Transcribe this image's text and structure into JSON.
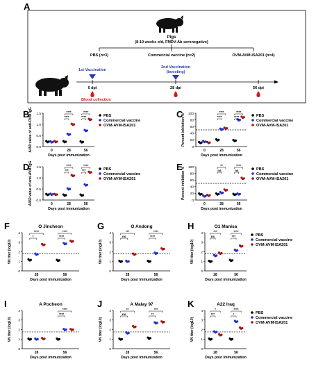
{
  "panel_labels": [
    "A",
    "B",
    "C",
    "D",
    "E",
    "F",
    "G",
    "H",
    "I",
    "J",
    "K"
  ],
  "schematic": {
    "animal_title": "Pigs",
    "animal_subtitle": "(8-10 weeks old, FMDV-Ab seronegative)",
    "groups": [
      "PBS (n=3)",
      "Commercial vaccine (n=2)",
      "OVM-AVM-ISA201 (n=4)"
    ],
    "vaccination_1": "1st Vaccination",
    "vaccination_2": "2nd Vaccination",
    "vaccination_2_note": "(boosting)",
    "timepoints": [
      "0 dpi",
      "28 dpi",
      "56 dpi"
    ],
    "blood_collection": "Blood collection",
    "colors": {
      "vaccination": "#2b3aa6",
      "blood": "#d11a1a"
    }
  },
  "legend": [
    "PBS",
    "Commercial vaccine",
    "OVM-AVM-ISA201"
  ],
  "colors": {
    "PBS": "#000000",
    "Commercial vaccine": "#1f2fd0",
    "OVM-AVM-ISA201": "#a31515"
  },
  "chart_data": [
    {
      "id": "B",
      "type": "scatter",
      "xlabel": "Days post immunization",
      "ylabel": "A450 value of anti-OVM IgG",
      "categories": [
        "0",
        "28",
        "56"
      ],
      "yticks": [
        "0.0",
        "0.5",
        "1.0",
        "1.5"
      ],
      "ylim": [
        0,
        1.5
      ],
      "legend": "right",
      "series": [
        {
          "name": "PBS",
          "values": [
            0.22,
            0.22,
            0.21
          ]
        },
        {
          "name": "Commercial vaccine",
          "values": [
            0.21,
            0.55,
            0.72
          ]
        },
        {
          "name": "OVM-AVM-ISA201",
          "values": [
            0.22,
            1.0,
            1.22
          ]
        }
      ],
      "sig": [
        {
          "x": 1,
          "level": 1,
          "text": "****"
        },
        {
          "x": 1,
          "level": 0,
          "text": "****"
        },
        {
          "x": 2,
          "level": 1,
          "text": "****"
        },
        {
          "x": 2,
          "level": 0,
          "text": "****"
        }
      ]
    },
    {
      "id": "C",
      "type": "scatter",
      "xlabel": "Days post immunization",
      "ylabel": "Percent inhibition %",
      "categories": [
        "0",
        "28",
        "56"
      ],
      "yticks": [
        "0",
        "20",
        "40",
        "60",
        "80",
        "100"
      ],
      "ylim": [
        0,
        100
      ],
      "cutoff": 50,
      "legend": "right",
      "series": [
        {
          "name": "PBS",
          "values": [
            12,
            20,
            18
          ]
        },
        {
          "name": "Commercial vaccine",
          "values": [
            15,
            52,
            80
          ]
        },
        {
          "name": "OVM-AVM-ISA201",
          "values": [
            12,
            55,
            88
          ]
        }
      ],
      "sig": [
        {
          "x": 1,
          "level": 1,
          "text": "****"
        },
        {
          "x": 1,
          "level": 0,
          "text": "****"
        },
        {
          "x": 2,
          "level": 1,
          "text": "****"
        },
        {
          "x": 2,
          "level": 0,
          "text": "****"
        }
      ]
    },
    {
      "id": "D",
      "type": "scatter",
      "xlabel": "Days post immunization",
      "ylabel": "A450 value of anti-AVM IgG",
      "categories": [
        "0",
        "28",
        "56"
      ],
      "yticks": [
        "0.0",
        "0.5",
        "1.0",
        "1.5"
      ],
      "ylim": [
        0,
        1.5
      ],
      "legend": "right",
      "series": [
        {
          "name": "PBS",
          "values": [
            0.25,
            0.22,
            0.22
          ]
        },
        {
          "name": "Commercial vaccine",
          "values": [
            0.26,
            0.5,
            0.68
          ]
        },
        {
          "name": "OVM-AVM-ISA201",
          "values": [
            0.25,
            1.1,
            1.25
          ]
        }
      ],
      "sig": [
        {
          "x": 1,
          "level": 1,
          "text": "****"
        },
        {
          "x": 1,
          "level": 0,
          "text": "***"
        },
        {
          "x": 2,
          "level": 1,
          "text": "****"
        },
        {
          "x": 2,
          "level": 0,
          "text": "***"
        }
      ]
    },
    {
      "id": "E",
      "type": "scatter",
      "xlabel": "Days post immunization",
      "ylabel": "Percent inhibition %",
      "categories": [
        "0",
        "28",
        "56"
      ],
      "yticks": [
        "0",
        "20",
        "40",
        "60",
        "80",
        "100"
      ],
      "ylim": [
        0,
        100
      ],
      "cutoff": 50,
      "legend": "right",
      "series": [
        {
          "name": "PBS",
          "values": [
            18,
            18,
            17
          ]
        },
        {
          "name": "Commercial vaccine",
          "values": [
            12,
            22,
            18
          ]
        },
        {
          "name": "OVM-AVM-ISA201",
          "values": [
            14,
            30,
            65
          ]
        }
      ],
      "sig": [
        {
          "x": 1,
          "level": 1,
          "text": "**"
        },
        {
          "x": 1,
          "level": 0,
          "text": "ns"
        },
        {
          "x": 2,
          "level": 1,
          "text": "****"
        },
        {
          "x": 2,
          "level": 0,
          "text": "ns"
        }
      ]
    },
    {
      "id": "F",
      "type": "scatter",
      "title": "O Jincheon",
      "xlabel": "Days post immunization",
      "ylabel": "VN titer (log10)",
      "categories": [
        "28",
        "56"
      ],
      "yticks": [
        "0",
        "1",
        "2",
        "3",
        "4"
      ],
      "ylim": [
        0,
        4
      ],
      "cutoff": 1.8,
      "series": [
        {
          "name": "PBS",
          "values": [
            1.15,
            1.1
          ]
        },
        {
          "name": "Commercial vaccine",
          "values": [
            1.75,
            2.85
          ]
        },
        {
          "name": "OVM-AVM-ISA201",
          "values": [
            2.75,
            3.1
          ]
        }
      ],
      "sig": [
        {
          "x": 0,
          "level": 1,
          "text": "****"
        },
        {
          "x": 0,
          "level": 0,
          "text": "*"
        },
        {
          "x": 1,
          "level": 1,
          "text": "****"
        },
        {
          "x": 1,
          "level": 0,
          "text": "****"
        }
      ]
    },
    {
      "id": "G",
      "type": "scatter",
      "title": "O Andong",
      "xlabel": "Days post immunization",
      "ylabel": "VN titer (log10)",
      "categories": [
        "28",
        "56"
      ],
      "yticks": [
        "0",
        "1",
        "2",
        "3",
        "4"
      ],
      "ylim": [
        0,
        4
      ],
      "cutoff": 1.8,
      "series": [
        {
          "name": "PBS",
          "values": [
            1.0,
            1.0
          ]
        },
        {
          "name": "Commercial vaccine",
          "values": [
            1.0,
            1.85
          ]
        },
        {
          "name": "OVM-AVM-ISA201",
          "values": [
            1.75,
            2.3
          ]
        }
      ],
      "sig": [
        {
          "x": 0,
          "level": 1,
          "text": "***"
        },
        {
          "x": 0,
          "level": 0,
          "text": "ns"
        },
        {
          "x": 1,
          "level": 1,
          "text": "****"
        },
        {
          "x": 1,
          "level": 0,
          "text": "****"
        }
      ]
    },
    {
      "id": "H",
      "type": "scatter",
      "title": "O1 Manisa",
      "xlabel": "Days post immunization",
      "ylabel": "VN titer (log10)",
      "categories": [
        "28",
        "56"
      ],
      "yticks": [
        "0",
        "1",
        "2",
        "3",
        "4"
      ],
      "ylim": [
        0,
        4
      ],
      "cutoff": 1.8,
      "legend": "right",
      "series": [
        {
          "name": "PBS",
          "values": [
            1.0,
            1.1
          ]
        },
        {
          "name": "Commercial vaccine",
          "values": [
            1.6,
            2.15
          ]
        },
        {
          "name": "OVM-AVM-ISA201",
          "values": [
            1.85,
            2.6
          ]
        }
      ],
      "sig": [
        {
          "x": 0,
          "level": 1,
          "text": "***"
        },
        {
          "x": 0,
          "level": 0,
          "text": "ns"
        },
        {
          "x": 1,
          "level": 1,
          "text": "****"
        },
        {
          "x": 1,
          "level": 0,
          "text": "***"
        }
      ]
    },
    {
      "id": "I",
      "type": "scatter",
      "title": "A Pocheon",
      "xlabel": "Days post immunization",
      "ylabel": "VN titer (log10)",
      "categories": [
        "28",
        "56"
      ],
      "yticks": [
        "0",
        "1",
        "2",
        "3",
        "4"
      ],
      "ylim": [
        0,
        4
      ],
      "cutoff": 1.75,
      "series": [
        {
          "name": "PBS",
          "values": [
            1.0,
            1.0
          ]
        },
        {
          "name": "Commercial vaccine",
          "values": [
            1.0,
            2.0
          ]
        },
        {
          "name": "OVM-AVM-ISA201",
          "values": [
            1.05,
            2.0
          ]
        }
      ],
      "sig": [
        {
          "x": 1,
          "level": 1,
          "text": "****"
        },
        {
          "x": 1,
          "level": 0,
          "text": "****"
        }
      ]
    },
    {
      "id": "J",
      "type": "scatter",
      "title": "A Malay 97",
      "xlabel": "Days post immunization",
      "ylabel": "VN titer (log10)",
      "categories": [
        "28",
        "56"
      ],
      "yticks": [
        "0",
        "1",
        "2",
        "3",
        "4"
      ],
      "ylim": [
        0,
        4
      ],
      "cutoff": 1.75,
      "series": [
        {
          "name": "PBS",
          "values": [
            1.0,
            1.1
          ]
        },
        {
          "name": "Commercial vaccine",
          "values": [
            1.65,
            2.7
          ]
        },
        {
          "name": "OVM-AVM-ISA201",
          "values": [
            2.3,
            2.8
          ]
        }
      ],
      "sig": [
        {
          "x": 0,
          "level": 1,
          "text": "**"
        },
        {
          "x": 0,
          "level": 0,
          "text": "ns"
        },
        {
          "x": 1,
          "level": 1,
          "text": "***"
        },
        {
          "x": 1,
          "level": 0,
          "text": "**"
        }
      ]
    },
    {
      "id": "K",
      "type": "scatter",
      "title": "A22 Iraq",
      "xlabel": "Days post immunization",
      "ylabel": "VN titer (log10)",
      "categories": [
        "28",
        "56"
      ],
      "yticks": [
        "0",
        "1",
        "2",
        "3",
        "4"
      ],
      "ylim": [
        0,
        4
      ],
      "cutoff": 1.75,
      "legend": "right",
      "series": [
        {
          "name": "PBS",
          "values": [
            1.0,
            1.0
          ]
        },
        {
          "name": "Commercial vaccine",
          "values": [
            1.75,
            2.85
          ]
        },
        {
          "name": "OVM-AVM-ISA201",
          "values": [
            1.45,
            2.15
          ]
        }
      ],
      "sig": [
        {
          "x": 0,
          "level": 1,
          "text": "*"
        },
        {
          "x": 0,
          "level": 0,
          "text": "***"
        },
        {
          "x": 1,
          "level": 1,
          "text": "****"
        },
        {
          "x": 1,
          "level": 0,
          "text": "*"
        }
      ]
    }
  ]
}
